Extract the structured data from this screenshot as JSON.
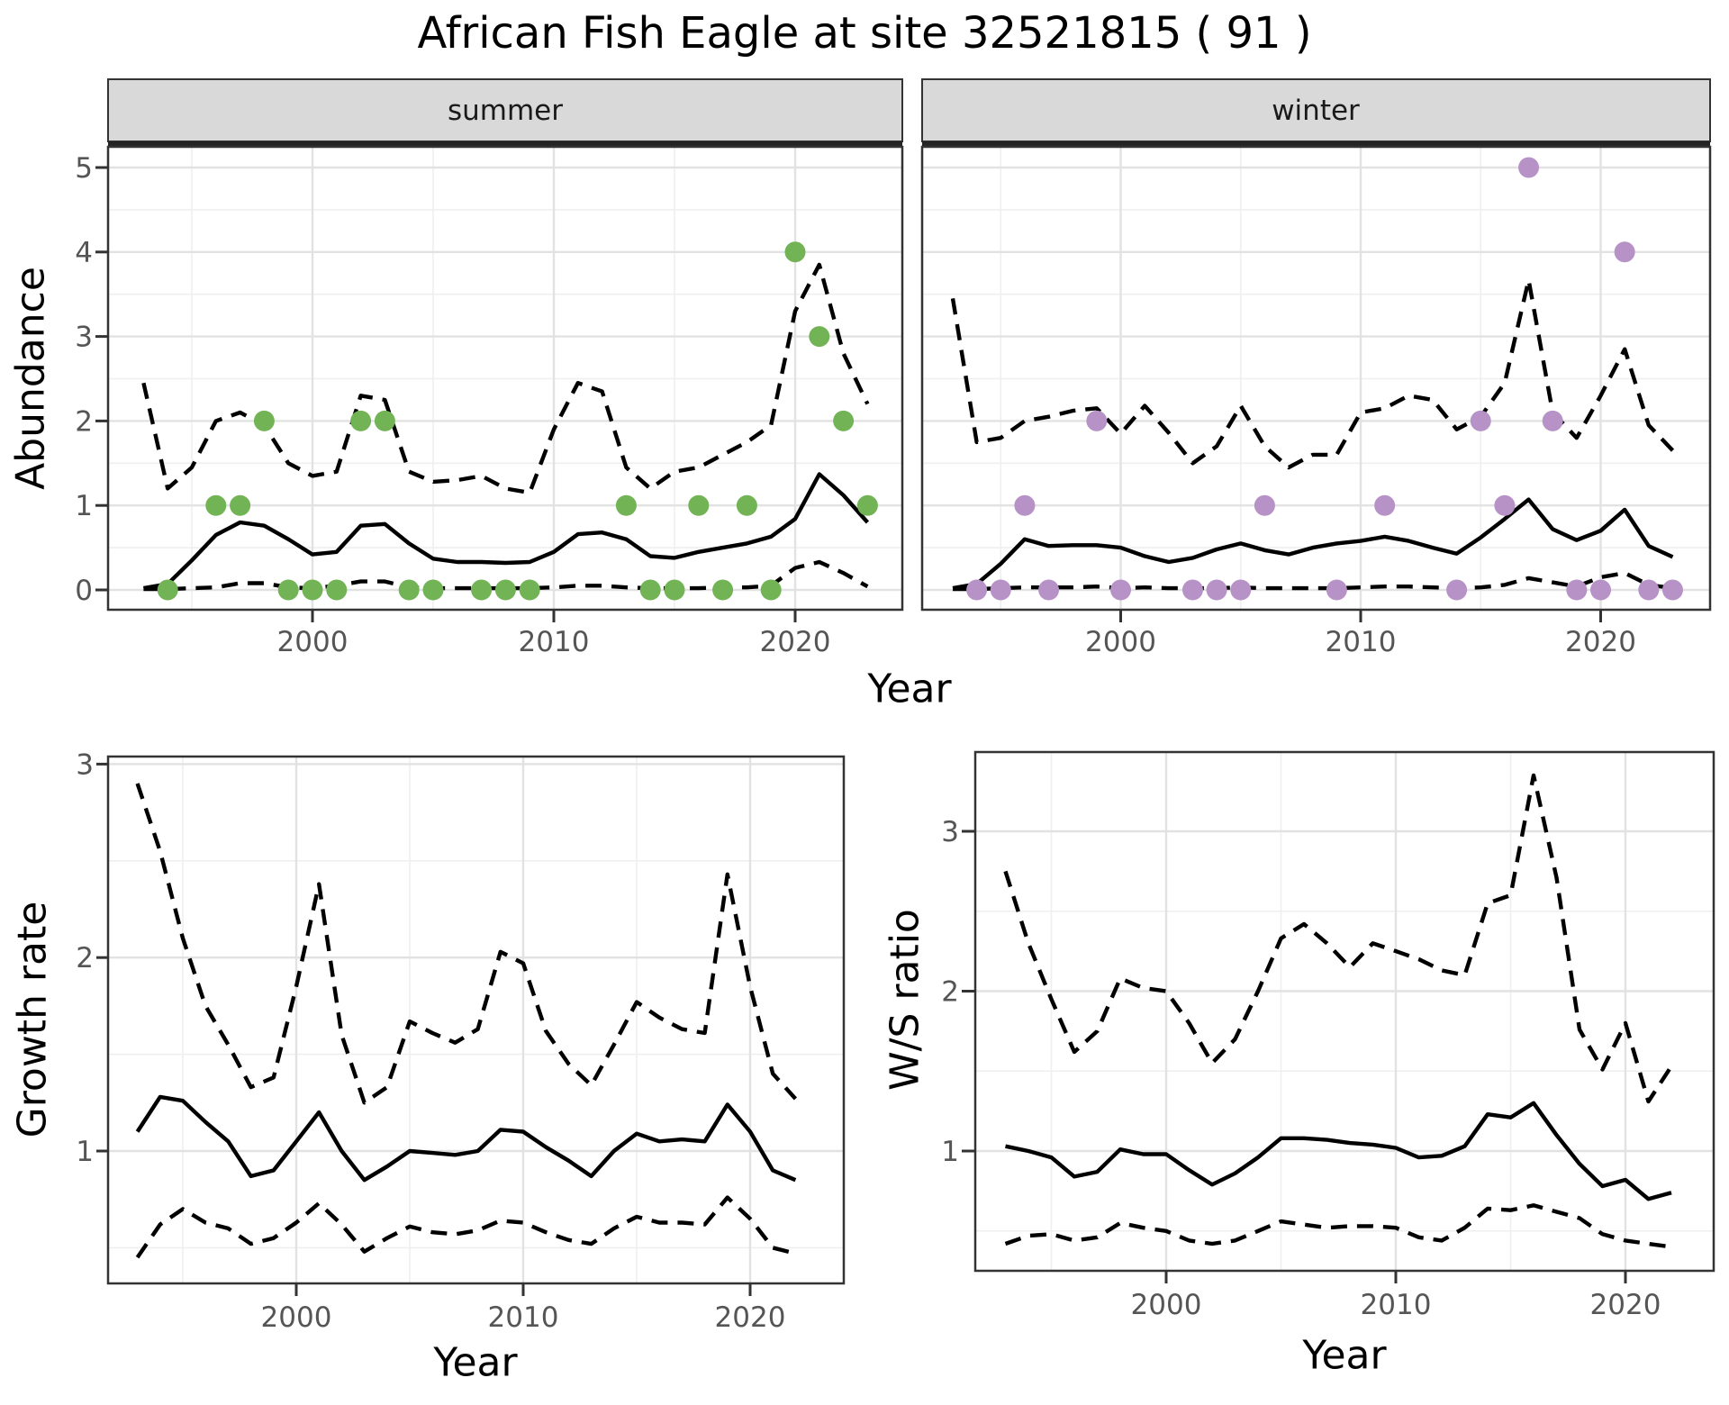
{
  "title": "African Fish Eagle at site 32521815 ( 91 )",
  "colors": {
    "summer_point": "#72b455",
    "winter_point": "#b792c6",
    "line": "#000000",
    "strip_bg": "#d9d9d9",
    "panel_border": "#333333",
    "grid_major": "#e2e2e2",
    "grid_minor": "#efefef",
    "tick_text": "#555555",
    "tick_mark": "#333333",
    "panel_bg": "#ffffff"
  },
  "chart_data": [
    {
      "id": "abundance",
      "type": "line",
      "ylabel": "Abundance",
      "xlabel": "Year",
      "yticks": [
        0,
        1,
        2,
        3,
        4,
        5
      ],
      "xticks": [
        2000,
        2010,
        2020
      ],
      "xminor": [
        1995,
        2005,
        2015
      ],
      "ylim": [
        -0.25,
        5.25
      ],
      "xlim": [
        1991.5,
        2024.5
      ],
      "years": [
        1993,
        1994,
        1995,
        1996,
        1997,
        1998,
        1999,
        2000,
        2001,
        2002,
        2003,
        2004,
        2005,
        2006,
        2007,
        2008,
        2009,
        2010,
        2011,
        2012,
        2013,
        2014,
        2015,
        2016,
        2017,
        2018,
        2019,
        2020,
        2021,
        2022,
        2023
      ],
      "facets": [
        {
          "label": "summer",
          "obs": [
            null,
            0,
            null,
            1,
            1,
            2,
            0,
            0,
            0,
            2,
            2,
            0,
            0,
            null,
            0,
            0,
            0,
            null,
            null,
            null,
            1,
            0,
            0,
            1,
            0,
            1,
            0,
            4,
            3,
            2,
            1
          ],
          "mean": [
            0.02,
            0.07,
            0.35,
            0.65,
            0.8,
            0.76,
            0.6,
            0.42,
            0.45,
            0.76,
            0.78,
            0.55,
            0.37,
            0.33,
            0.33,
            0.32,
            0.33,
            0.45,
            0.66,
            0.68,
            0.6,
            0.4,
            0.38,
            0.45,
            0.5,
            0.55,
            0.63,
            0.84,
            1.37,
            1.12,
            0.8
          ],
          "upper": [
            2.45,
            1.2,
            1.45,
            2.0,
            2.1,
            1.95,
            1.5,
            1.35,
            1.4,
            2.3,
            2.25,
            1.4,
            1.28,
            1.3,
            1.35,
            1.2,
            1.15,
            1.9,
            2.45,
            2.35,
            1.45,
            1.2,
            1.4,
            1.45,
            1.6,
            1.75,
            1.95,
            3.3,
            3.85,
            2.8,
            2.2
          ],
          "lower": [
            0.01,
            0.01,
            0.02,
            0.03,
            0.08,
            0.08,
            0.03,
            0.02,
            0.05,
            0.1,
            0.1,
            0.03,
            0.02,
            0.02,
            0.02,
            0.02,
            0.02,
            0.03,
            0.05,
            0.05,
            0.03,
            0.02,
            0.02,
            0.02,
            0.03,
            0.03,
            0.05,
            0.26,
            0.33,
            0.2,
            0.04
          ]
        },
        {
          "label": "winter",
          "obs": [
            null,
            0,
            0,
            1,
            0,
            null,
            2,
            0,
            null,
            null,
            0,
            0,
            0,
            1,
            null,
            null,
            0,
            null,
            1,
            null,
            null,
            0,
            2,
            1,
            5,
            2,
            0,
            0,
            4,
            0,
            0
          ],
          "mean": [
            0.02,
            0.07,
            0.31,
            0.6,
            0.52,
            0.53,
            0.53,
            0.5,
            0.4,
            0.33,
            0.38,
            0.48,
            0.55,
            0.47,
            0.42,
            0.5,
            0.55,
            0.58,
            0.63,
            0.58,
            0.5,
            0.43,
            0.62,
            0.84,
            1.07,
            0.72,
            0.59,
            0.7,
            0.95,
            0.52,
            0.39
          ],
          "upper": [
            3.45,
            1.75,
            1.8,
            2.0,
            2.05,
            2.12,
            2.15,
            1.85,
            2.18,
            1.86,
            1.5,
            1.7,
            2.18,
            1.7,
            1.45,
            1.6,
            1.6,
            2.1,
            2.15,
            2.3,
            2.25,
            1.9,
            2.05,
            2.45,
            3.67,
            2.1,
            1.8,
            2.3,
            2.85,
            1.95,
            1.65
          ],
          "lower": [
            0.01,
            0.01,
            0.02,
            0.03,
            0.03,
            0.03,
            0.04,
            0.02,
            0.03,
            0.02,
            0.02,
            0.02,
            0.03,
            0.02,
            0.02,
            0.02,
            0.02,
            0.03,
            0.04,
            0.04,
            0.03,
            0.02,
            0.03,
            0.06,
            0.14,
            0.09,
            0.04,
            0.15,
            0.2,
            0.06,
            0.02
          ]
        }
      ]
    },
    {
      "id": "growth_rate",
      "type": "line",
      "ylabel": "Growth rate",
      "xlabel": "Year",
      "yticks": [
        1,
        2,
        3
      ],
      "xticks": [
        2000,
        2010,
        2020
      ],
      "xminor": [
        1995,
        2005,
        2015
      ],
      "ylim": [
        0.33,
        3.02
      ],
      "xlim": [
        1991.5,
        2023.5
      ],
      "years": [
        1993,
        1994,
        1995,
        1996,
        1997,
        1998,
        1999,
        2000,
        2001,
        2002,
        2003,
        2004,
        2005,
        2006,
        2007,
        2008,
        2009,
        2010,
        2011,
        2012,
        2013,
        2014,
        2015,
        2016,
        2017,
        2018,
        2019,
        2020,
        2021,
        2022
      ],
      "mean": [
        1.1,
        1.28,
        1.26,
        1.15,
        1.05,
        0.87,
        0.9,
        1.05,
        1.2,
        1.0,
        0.85,
        0.92,
        1.0,
        0.99,
        0.98,
        1.0,
        1.11,
        1.1,
        1.02,
        0.95,
        0.87,
        1.0,
        1.09,
        1.05,
        1.06,
        1.05,
        1.24,
        1.1,
        0.9,
        0.85
      ],
      "upper": [
        2.9,
        2.55,
        2.1,
        1.75,
        1.55,
        1.33,
        1.38,
        1.85,
        2.38,
        1.6,
        1.25,
        1.33,
        1.67,
        1.61,
        1.56,
        1.63,
        2.03,
        1.97,
        1.62,
        1.45,
        1.34,
        1.55,
        1.77,
        1.69,
        1.63,
        1.61,
        2.43,
        1.85,
        1.4,
        1.27
      ],
      "lower": [
        0.45,
        0.62,
        0.7,
        0.63,
        0.6,
        0.52,
        0.55,
        0.63,
        0.73,
        0.62,
        0.48,
        0.55,
        0.61,
        0.58,
        0.57,
        0.59,
        0.64,
        0.63,
        0.58,
        0.54,
        0.52,
        0.6,
        0.66,
        0.63,
        0.63,
        0.62,
        0.76,
        0.65,
        0.5,
        0.47
      ]
    },
    {
      "id": "ws_ratio",
      "type": "line",
      "ylabel": "W/S ratio",
      "xlabel": "Year",
      "yticks": [
        1,
        2,
        3
      ],
      "xticks": [
        2000,
        2010,
        2020
      ],
      "xminor": [
        1995,
        2005,
        2015
      ],
      "ylim": [
        0.25,
        3.5
      ],
      "xlim": [
        1991.5,
        2023.5
      ],
      "years": [
        1993,
        1994,
        1995,
        1996,
        1997,
        1998,
        1999,
        2000,
        2001,
        2002,
        2003,
        2004,
        2005,
        2006,
        2007,
        2008,
        2009,
        2010,
        2011,
        2012,
        2013,
        2014,
        2015,
        2016,
        2017,
        2018,
        2019,
        2020,
        2021,
        2022
      ],
      "mean": [
        1.03,
        1.0,
        0.96,
        0.84,
        0.87,
        1.01,
        0.98,
        0.98,
        0.88,
        0.79,
        0.86,
        0.96,
        1.08,
        1.08,
        1.07,
        1.05,
        1.04,
        1.02,
        0.96,
        0.97,
        1.03,
        1.23,
        1.21,
        1.3,
        1.1,
        0.92,
        0.78,
        0.82,
        0.7,
        0.74
      ],
      "upper": [
        2.75,
        2.3,
        1.95,
        1.62,
        1.75,
        2.08,
        2.02,
        2.0,
        1.8,
        1.55,
        1.7,
        2.0,
        2.33,
        2.42,
        2.3,
        2.15,
        2.3,
        2.25,
        2.2,
        2.13,
        2.1,
        2.55,
        2.6,
        3.35,
        2.71,
        1.76,
        1.51,
        1.8,
        1.31,
        1.53
      ],
      "lower": [
        0.42,
        0.47,
        0.48,
        0.44,
        0.46,
        0.55,
        0.52,
        0.5,
        0.44,
        0.42,
        0.44,
        0.5,
        0.56,
        0.54,
        0.52,
        0.53,
        0.53,
        0.52,
        0.46,
        0.44,
        0.52,
        0.64,
        0.63,
        0.66,
        0.62,
        0.58,
        0.48,
        0.44,
        0.42,
        0.4
      ]
    }
  ]
}
